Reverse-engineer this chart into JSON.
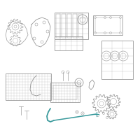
{
  "bg_color": "#ffffff",
  "line_color": "#999999",
  "highlight_color": "#3a9a9c",
  "fig_size": [
    2.0,
    2.0
  ],
  "dpi": 100
}
